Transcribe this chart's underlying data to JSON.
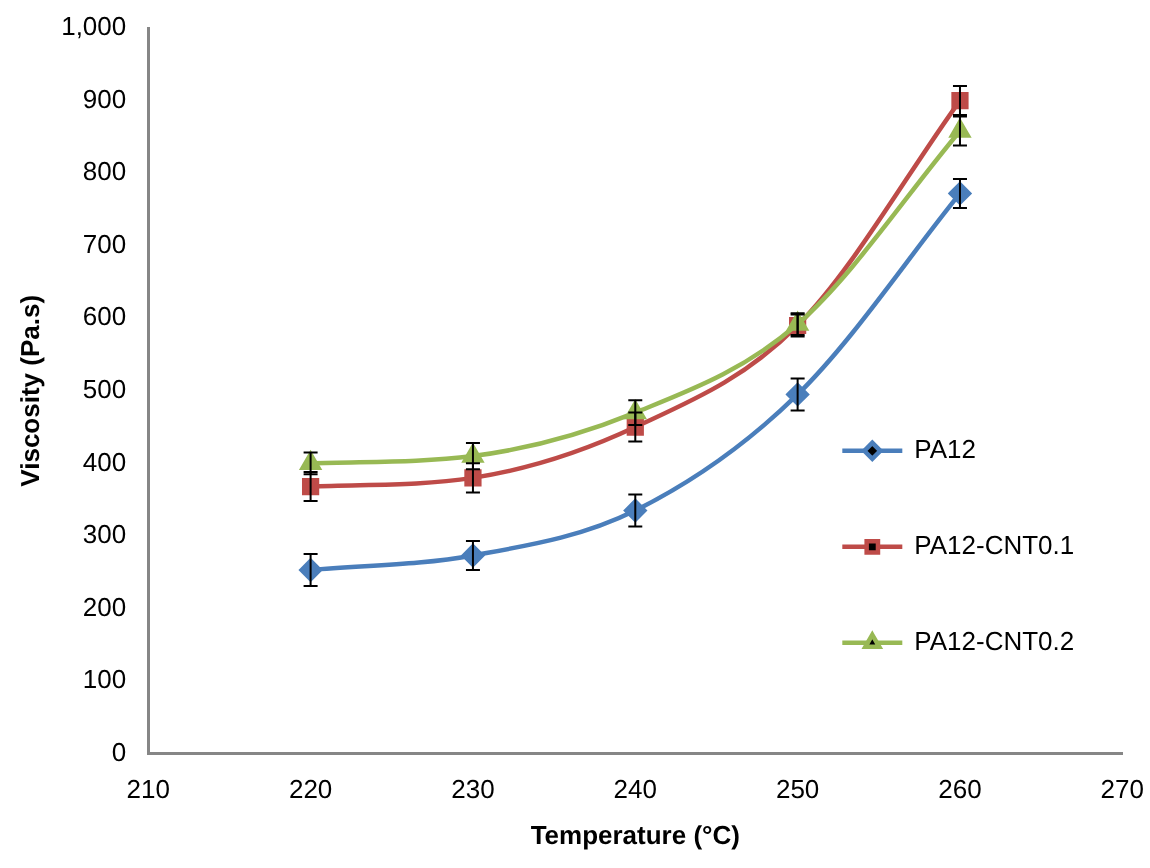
{
  "chart_data": {
    "type": "line",
    "xlabel": "Temperature (°C)",
    "ylabel": "Viscosity (Pa.s)",
    "x": [
      220,
      230,
      240,
      250,
      260
    ],
    "series": [
      {
        "name": "PA12",
        "color": "#4a7ebb",
        "marker": "diamond",
        "values": [
          253,
          273,
          335,
          495,
          772
        ],
        "errors": [
          22,
          20,
          22,
          22,
          20
        ]
      },
      {
        "name": "PA12-CNT0.1",
        "color": "#be4b48",
        "marker": "square",
        "values": [
          368,
          380,
          450,
          590,
          900
        ],
        "errors": [
          20,
          20,
          20,
          15,
          20
        ]
      },
      {
        "name": "PA12-CNT0.2",
        "color": "#98b954",
        "marker": "triangle",
        "values": [
          400,
          410,
          470,
          592,
          858
        ],
        "errors": [
          15,
          18,
          17,
          15,
          20
        ]
      }
    ],
    "xlim": [
      210,
      270
    ],
    "xticks": [
      210,
      220,
      230,
      240,
      250,
      260,
      270
    ],
    "ylim": [
      0,
      1000
    ],
    "yticks": [
      0,
      100,
      200,
      300,
      400,
      500,
      600,
      700,
      800,
      900,
      {
        "value": 1000,
        "label": "1,000"
      }
    ],
    "grid": false,
    "legend": "right"
  }
}
